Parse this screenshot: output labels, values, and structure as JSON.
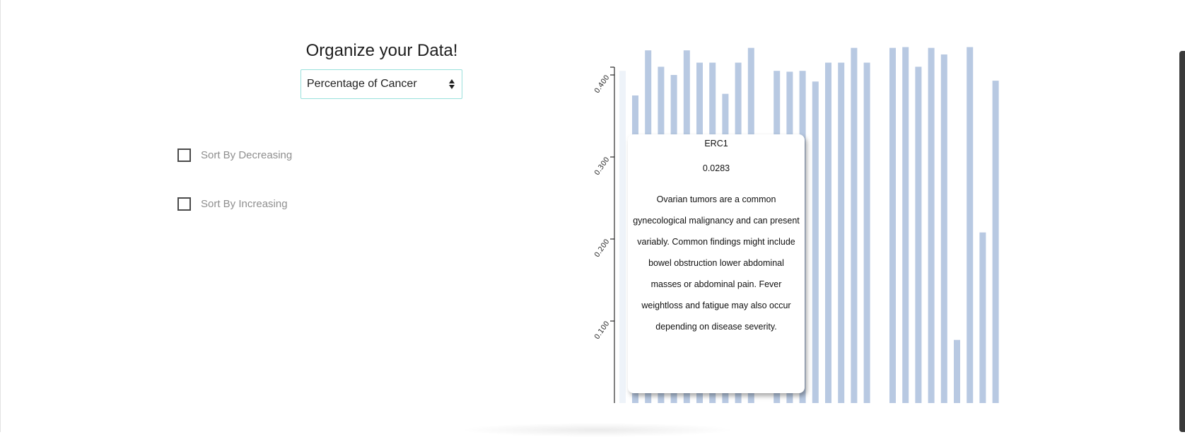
{
  "heading": "Organize your Data!",
  "metric_select": {
    "value": "Percentage of Cancer"
  },
  "sort_options": [
    {
      "label": "Sort By Decreasing",
      "checked": false
    },
    {
      "label": "Sort By Increasing",
      "checked": false
    }
  ],
  "chart_data": {
    "type": "bar",
    "bar_color": "#b8c9e2",
    "highlight_color": "#eef3f9",
    "ylim": [
      0,
      0.41
    ],
    "y_ticks": [
      "0.100",
      "0.200",
      "0.300",
      "0.400"
    ],
    "y_tick_values": [
      0.1,
      0.2,
      0.3,
      0.4
    ],
    "values": [
      0.405,
      0.375,
      0.43,
      0.41,
      0.4,
      0.43,
      0.415,
      0.415,
      0.377,
      0.415,
      0.433,
      0.405,
      0.404,
      0.405,
      0.392,
      0.415,
      0.415,
      0.433,
      0.415,
      0.433,
      0.434,
      0.41,
      0.433,
      0.425,
      0.077,
      0.434,
      0.208,
      0.393
    ]
  },
  "tooltip": {
    "name": "ERC1",
    "value": "0.0283",
    "description": "Ovarian tumors are a common gynecological malignancy and can present variably. Common findings might include bowel obstruction lower abdominal masses or abdominal pain. Fever weightloss and fatigue may also occur depending on disease severity."
  }
}
